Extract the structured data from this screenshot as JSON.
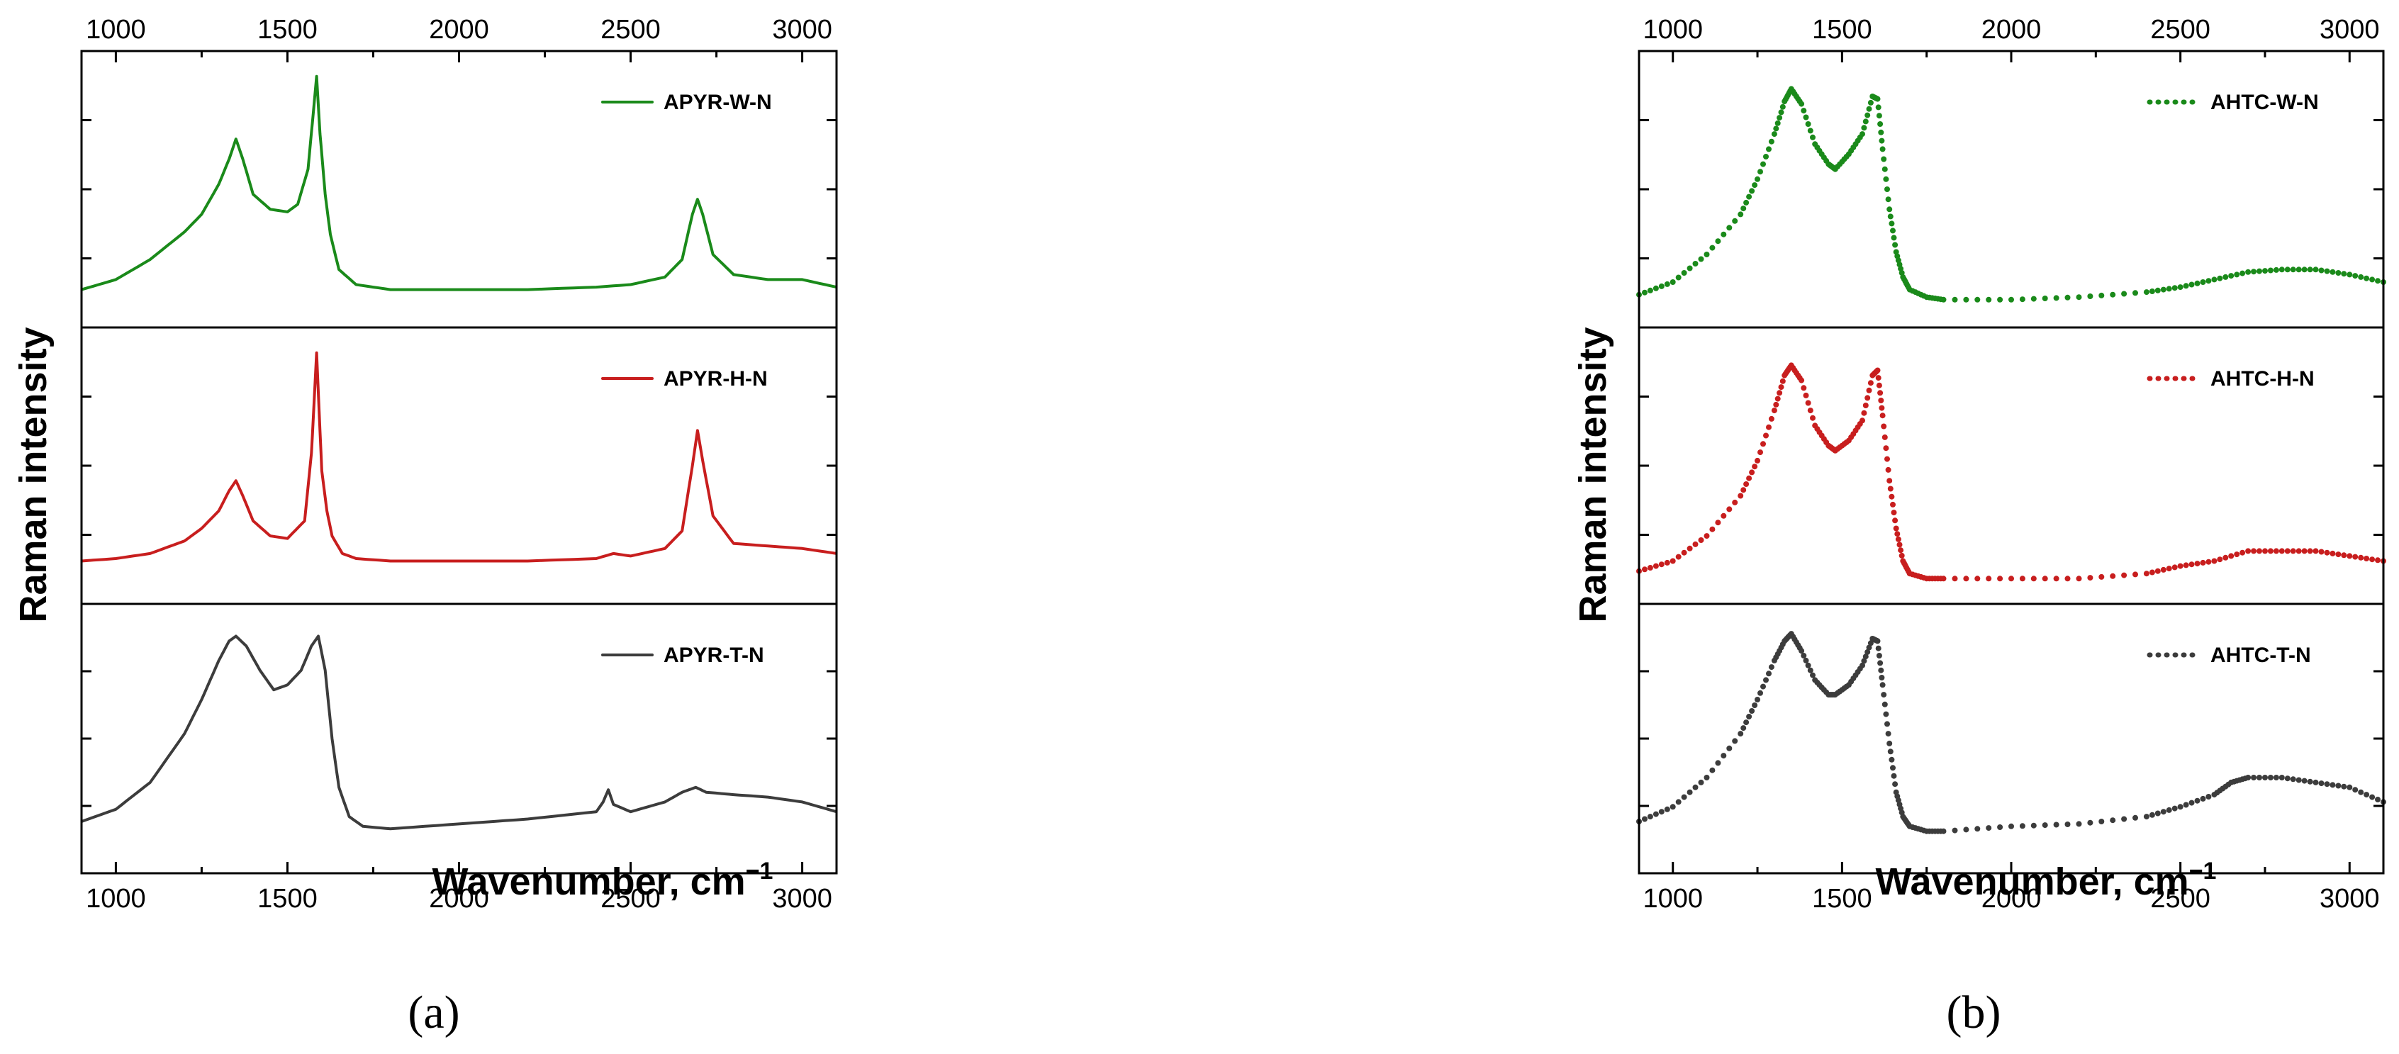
{
  "chart_data": [
    {
      "type": "line",
      "panel_label": "(a)",
      "xlabel": "Wavenumber, cm",
      "xlabel_superscript": "−1",
      "ylabel": "Raman intensity",
      "xlim": [
        900,
        3100
      ],
      "ylim": [
        0,
        1
      ],
      "x_ticks": [
        1000,
        1500,
        2000,
        2500,
        3000
      ],
      "x_tick_labels": [
        "1000",
        "1500",
        "2000",
        "2500",
        "3000"
      ],
      "line_style": "solid",
      "series": [
        {
          "name": "APYR-W-N",
          "color": "#1a8a1a",
          "x": [
            900,
            1000,
            1100,
            1200,
            1250,
            1300,
            1330,
            1350,
            1370,
            1400,
            1450,
            1500,
            1530,
            1560,
            1575,
            1585,
            1595,
            1610,
            1625,
            1650,
            1700,
            1800,
            2000,
            2200,
            2400,
            2500,
            2600,
            2650,
            2680,
            2695,
            2710,
            2740,
            2800,
            2900,
            3000,
            3100
          ],
          "y": [
            0.1,
            0.14,
            0.22,
            0.33,
            0.4,
            0.52,
            0.62,
            0.7,
            0.62,
            0.48,
            0.42,
            0.41,
            0.44,
            0.58,
            0.8,
            0.95,
            0.72,
            0.48,
            0.32,
            0.18,
            0.12,
            0.1,
            0.1,
            0.1,
            0.11,
            0.12,
            0.15,
            0.22,
            0.4,
            0.46,
            0.4,
            0.24,
            0.16,
            0.14,
            0.14,
            0.11
          ]
        },
        {
          "name": "APYR-H-N",
          "color": "#c81e1e",
          "x": [
            900,
            1000,
            1100,
            1200,
            1250,
            1300,
            1330,
            1350,
            1370,
            1400,
            1450,
            1500,
            1550,
            1570,
            1585,
            1600,
            1615,
            1630,
            1660,
            1700,
            1800,
            2000,
            2200,
            2400,
            2450,
            2500,
            2600,
            2650,
            2680,
            2695,
            2710,
            2740,
            2800,
            2900,
            3000,
            3100
          ],
          "y": [
            0.12,
            0.13,
            0.15,
            0.2,
            0.25,
            0.32,
            0.4,
            0.44,
            0.38,
            0.28,
            0.22,
            0.21,
            0.28,
            0.55,
            0.95,
            0.48,
            0.32,
            0.22,
            0.15,
            0.13,
            0.12,
            0.12,
            0.12,
            0.13,
            0.15,
            0.14,
            0.17,
            0.24,
            0.5,
            0.64,
            0.52,
            0.3,
            0.19,
            0.18,
            0.17,
            0.15
          ]
        },
        {
          "name": "APYR-T-N",
          "color": "#3c3c3c",
          "x": [
            900,
            1000,
            1100,
            1200,
            1250,
            1300,
            1330,
            1350,
            1380,
            1420,
            1460,
            1500,
            1540,
            1570,
            1590,
            1610,
            1630,
            1650,
            1680,
            1720,
            1800,
            2000,
            2200,
            2400,
            2420,
            2435,
            2450,
            2500,
            2600,
            2650,
            2690,
            2720,
            2800,
            2900,
            3000,
            3100
          ],
          "y": [
            0.16,
            0.21,
            0.32,
            0.52,
            0.66,
            0.82,
            0.9,
            0.92,
            0.88,
            0.78,
            0.7,
            0.72,
            0.78,
            0.88,
            0.92,
            0.78,
            0.5,
            0.3,
            0.18,
            0.14,
            0.13,
            0.15,
            0.17,
            0.2,
            0.24,
            0.29,
            0.23,
            0.2,
            0.24,
            0.28,
            0.3,
            0.28,
            0.27,
            0.26,
            0.24,
            0.2
          ]
        }
      ]
    },
    {
      "type": "scatter",
      "panel_label": "(b)",
      "xlabel": "Wavenumber, cm",
      "xlabel_superscript": "−1",
      "ylabel": "Raman intensity",
      "xlim": [
        900,
        3100
      ],
      "ylim": [
        0,
        1
      ],
      "x_ticks": [
        1000,
        1500,
        2000,
        2500,
        3000
      ],
      "x_tick_labels": [
        "1000",
        "1500",
        "2000",
        "2500",
        "3000"
      ],
      "line_style": "dotted",
      "series": [
        {
          "name": "AHTC-W-N",
          "color": "#1a8a1a",
          "x": [
            900,
            1000,
            1100,
            1200,
            1250,
            1300,
            1330,
            1350,
            1380,
            1420,
            1460,
            1480,
            1520,
            1560,
            1590,
            1605,
            1620,
            1640,
            1660,
            1680,
            1700,
            1750,
            1800,
            2000,
            2200,
            2400,
            2500,
            2600,
            2700,
            2800,
            2900,
            3000,
            3100
          ],
          "y": [
            0.08,
            0.13,
            0.24,
            0.4,
            0.54,
            0.72,
            0.85,
            0.9,
            0.84,
            0.68,
            0.6,
            0.58,
            0.64,
            0.72,
            0.87,
            0.86,
            0.66,
            0.42,
            0.25,
            0.15,
            0.1,
            0.07,
            0.06,
            0.06,
            0.07,
            0.09,
            0.11,
            0.14,
            0.17,
            0.18,
            0.18,
            0.16,
            0.13
          ]
        },
        {
          "name": "AHTC-H-N",
          "color": "#c81e1e",
          "x": [
            900,
            1000,
            1100,
            1200,
            1250,
            1300,
            1330,
            1350,
            1380,
            1420,
            1460,
            1480,
            1520,
            1560,
            1590,
            1605,
            1620,
            1640,
            1660,
            1680,
            1700,
            1750,
            1800,
            2000,
            2200,
            2400,
            2500,
            2600,
            2700,
            2800,
            2900,
            3000,
            3100
          ],
          "y": [
            0.08,
            0.12,
            0.22,
            0.38,
            0.52,
            0.72,
            0.86,
            0.9,
            0.84,
            0.66,
            0.58,
            0.56,
            0.6,
            0.68,
            0.86,
            0.88,
            0.7,
            0.44,
            0.25,
            0.12,
            0.07,
            0.05,
            0.05,
            0.05,
            0.05,
            0.07,
            0.1,
            0.12,
            0.16,
            0.16,
            0.16,
            0.14,
            0.12
          ]
        },
        {
          "name": "AHTC-T-N",
          "color": "#3c3c3c",
          "x": [
            900,
            1000,
            1100,
            1200,
            1250,
            1300,
            1330,
            1350,
            1380,
            1420,
            1460,
            1480,
            1520,
            1560,
            1590,
            1605,
            1620,
            1640,
            1660,
            1680,
            1700,
            1750,
            1800,
            2000,
            2200,
            2400,
            2500,
            2600,
            2650,
            2700,
            2800,
            2900,
            3000,
            3100
          ],
          "y": [
            0.16,
            0.22,
            0.34,
            0.52,
            0.66,
            0.82,
            0.9,
            0.93,
            0.86,
            0.74,
            0.68,
            0.68,
            0.72,
            0.8,
            0.91,
            0.9,
            0.72,
            0.48,
            0.28,
            0.18,
            0.14,
            0.12,
            0.12,
            0.14,
            0.15,
            0.18,
            0.22,
            0.27,
            0.32,
            0.34,
            0.34,
            0.32,
            0.3,
            0.24
          ]
        }
      ]
    }
  ]
}
